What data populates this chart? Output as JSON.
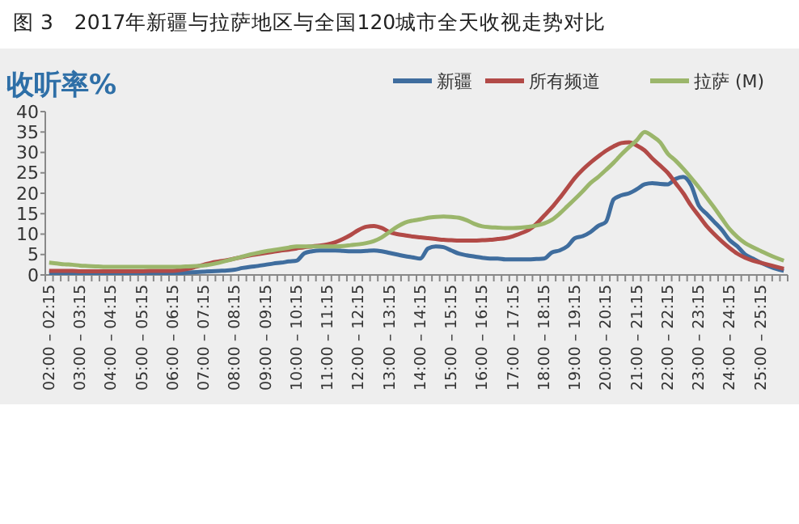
{
  "chart_data": {
    "type": "line",
    "title": "图 3　2017年新疆与拉萨地区与全国120城市全天收视走势对比",
    "ylabel": "收听率%",
    "categories": [
      "02:00 – 02:15",
      null,
      null,
      null,
      "03:00 – 03:15",
      null,
      null,
      null,
      "04:00 – 04:15",
      null,
      null,
      null,
      "05:00 – 05:15",
      null,
      null,
      null,
      "06:00 – 06:15",
      null,
      null,
      null,
      "07:00 – 07:15",
      null,
      null,
      null,
      "08:00 – 08:15",
      null,
      null,
      null,
      "09:00 – 09:15",
      null,
      null,
      null,
      "10:00 – 10:15",
      null,
      null,
      null,
      "11:00 – 11:15",
      null,
      null,
      null,
      "12:00 – 12:15",
      null,
      null,
      null,
      "13:00 – 13:15",
      null,
      null,
      null,
      "14:00 – 14:15",
      null,
      null,
      null,
      "15:00 – 15:15",
      null,
      null,
      null,
      "16:00 – 16:15",
      null,
      null,
      null,
      "17:00 – 17:15",
      null,
      null,
      null,
      "18:00 – 18:15",
      null,
      null,
      null,
      "19:00 – 19:15",
      null,
      null,
      null,
      "20:00 – 20:15",
      null,
      null,
      null,
      "21:00 – 21:15",
      null,
      null,
      null,
      "22:00 – 22:15",
      null,
      null,
      null,
      "23:00 – 23:15",
      null,
      null,
      null,
      "24:00 – 24:15",
      null,
      null,
      null,
      "25:00 – 25:15",
      null,
      null,
      null
    ],
    "series": [
      {
        "name": "新疆",
        "color": "#3f6d9e",
        "values": [
          0.5,
          0.5,
          0.5,
          0.5,
          0.5,
          0.5,
          0.5,
          0.5,
          0.5,
          0.5,
          0.5,
          0.5,
          0.5,
          0.5,
          0.5,
          0.5,
          0.5,
          0.5,
          0.6,
          0.7,
          0.8,
          0.9,
          1,
          1.1,
          1.3,
          1.7,
          2,
          2.2,
          2.5,
          2.8,
          3,
          3.3,
          3.5,
          5.3,
          5.8,
          6,
          6,
          6,
          5.9,
          5.8,
          5.8,
          5.9,
          6,
          5.8,
          5.4,
          5,
          4.6,
          4.3,
          4,
          6.5,
          7,
          6.8,
          6,
          5.2,
          4.8,
          4.5,
          4.2,
          4,
          4,
          3.8,
          3.8,
          3.8,
          3.8,
          3.9,
          4,
          5.5,
          6,
          7,
          9,
          9.5,
          10.5,
          12,
          13,
          18.5,
          19.5,
          20,
          21,
          22.2,
          22.5,
          22.3,
          22.2,
          23.5,
          24,
          22,
          17,
          15,
          13,
          11,
          8.5,
          7,
          5,
          4,
          3,
          2.2,
          1.5,
          1
        ]
      },
      {
        "name": "所有频道",
        "color": "#b24a47",
        "values": [
          1,
          1,
          1,
          1,
          0.9,
          0.9,
          0.9,
          0.9,
          0.9,
          0.9,
          0.9,
          0.9,
          0.9,
          1,
          1,
          1,
          1,
          1.2,
          1.5,
          2,
          2.5,
          3,
          3.3,
          3.6,
          4,
          4.4,
          4.8,
          5.1,
          5.4,
          5.7,
          6,
          6.2,
          6.5,
          6.8,
          7,
          7.2,
          7.5,
          8,
          8.8,
          9.8,
          11,
          11.8,
          12,
          11.5,
          10.5,
          10,
          9.7,
          9.4,
          9.2,
          9,
          8.8,
          8.6,
          8.5,
          8.4,
          8.4,
          8.4,
          8.5,
          8.6,
          8.8,
          9,
          9.5,
          10.2,
          11,
          12.5,
          14.5,
          16.5,
          18.8,
          21.3,
          23.8,
          25.8,
          27.5,
          29,
          30.4,
          31.5,
          32.3,
          32.5,
          31.7,
          30.5,
          28.5,
          26.8,
          25,
          22.5,
          20,
          17,
          14.5,
          12,
          10,
          8.2,
          6.6,
          5.2,
          4.2,
          3.5,
          3,
          2.5,
          2,
          1.5
        ]
      },
      {
        "name": "拉萨 (M)",
        "color": "#9bb66b",
        "values": [
          3,
          2.8,
          2.6,
          2.5,
          2.3,
          2.2,
          2.1,
          2,
          2,
          2,
          2,
          2,
          2,
          2,
          2,
          2,
          2,
          2,
          2.1,
          2.2,
          2.3,
          2.6,
          3,
          3.5,
          4,
          4.5,
          5,
          5.4,
          5.8,
          6.1,
          6.4,
          6.7,
          7,
          7,
          7,
          7,
          7,
          7,
          7.1,
          7.3,
          7.5,
          7.8,
          8.3,
          9.2,
          10.5,
          11.8,
          12.8,
          13.3,
          13.6,
          14,
          14.2,
          14.3,
          14.2,
          14,
          13.4,
          12.5,
          11.9,
          11.7,
          11.6,
          11.5,
          11.5,
          11.6,
          11.8,
          12.1,
          12.6,
          13.5,
          15,
          16.8,
          18.6,
          20.5,
          22.5,
          24,
          25.7,
          27.5,
          29.5,
          31.3,
          33,
          35,
          34,
          32.5,
          29.7,
          28,
          26,
          23.8,
          21.5,
          19,
          16.5,
          13.8,
          11.2,
          9.3,
          7.8,
          6.8,
          5.9,
          5,
          4.2,
          3.5
        ]
      }
    ],
    "ylim": [
      0,
      40
    ],
    "yticks": [
      0,
      5,
      10,
      15,
      20,
      25,
      30,
      35,
      40
    ],
    "grid": false,
    "legend": "top right",
    "marker": "none",
    "line_style": "solid"
  }
}
